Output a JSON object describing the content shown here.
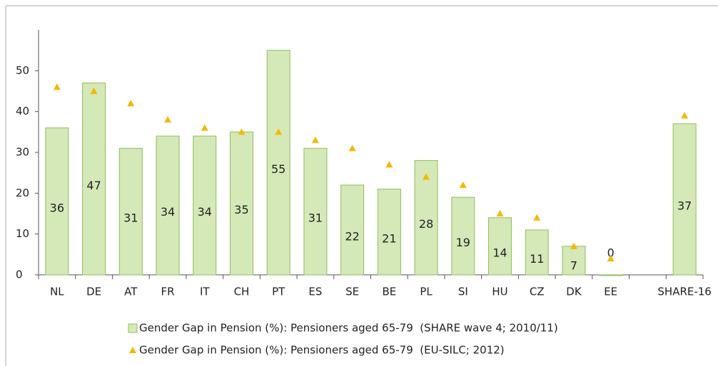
{
  "chart_data": {
    "type": "bar",
    "categories": [
      "NL",
      "DE",
      "AT",
      "FR",
      "IT",
      "CH",
      "PT",
      "ES",
      "SE",
      "BE",
      "PL",
      "SI",
      "HU",
      "CZ",
      "DK",
      "EE",
      null,
      "SHARE-16"
    ],
    "series": [
      {
        "name": "Gender Gap in Pension (%): Pensioners aged 65-79  (SHARE wave 4; 2010/11)",
        "color": "#d5e8b8",
        "stroke": "#8dbf5c",
        "marker": "bar",
        "values": [
          36,
          47,
          31,
          34,
          34,
          35,
          55,
          31,
          22,
          21,
          28,
          19,
          14,
          11,
          7,
          0,
          null,
          37
        ]
      },
      {
        "name": "Gender Gap in Pension (%): Pensioners aged 65-79  (EU-SILC; 2012)",
        "color": "#f5b800",
        "marker": "triangle",
        "values": [
          46,
          45,
          42,
          38,
          36,
          35,
          35,
          33,
          31,
          27,
          24,
          22,
          15,
          14,
          7,
          4,
          null,
          39
        ]
      }
    ],
    "ylim": [
      0,
      60
    ],
    "yticks": [
      0,
      10,
      20,
      30,
      40,
      50
    ],
    "grid": false
  }
}
